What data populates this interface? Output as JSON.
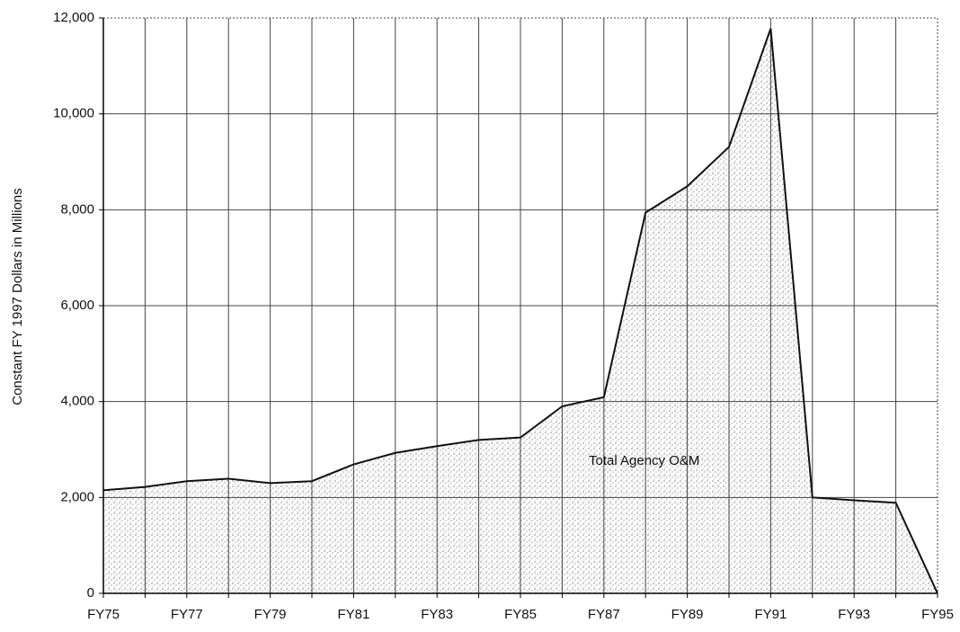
{
  "chart_data": {
    "type": "area",
    "y_label": "Constant FY 1997 Dollars in Millions",
    "annotation": "Total Agency O&M",
    "categories": [
      "FY75",
      null,
      "FY77",
      null,
      "FY79",
      null,
      "FY81",
      null,
      "FY83",
      null,
      "FY85",
      null,
      "FY87",
      null,
      "FY89",
      null,
      "FY91",
      null,
      "FY93",
      null,
      "FY95"
    ],
    "values": [
      2150,
      2220,
      2340,
      2390,
      2300,
      2340,
      2690,
      2930,
      3070,
      3200,
      3250,
      3900,
      4090,
      7940,
      8490,
      9310,
      11780,
      2000,
      1940,
      1890,
      0
    ],
    "color": "#b8b8b8",
    "ylim": [
      0,
      12000
    ],
    "yticks": [
      0,
      {
        "value": 2000,
        "label": "2,000"
      },
      {
        "value": 4000,
        "label": "4,000"
      },
      {
        "value": 6000,
        "label": "6,000"
      },
      {
        "value": 8000,
        "label": "8,000"
      },
      {
        "value": 10000,
        "label": "10,000"
      },
      {
        "value": 12000,
        "label": "12,000"
      }
    ],
    "grid": true
  }
}
